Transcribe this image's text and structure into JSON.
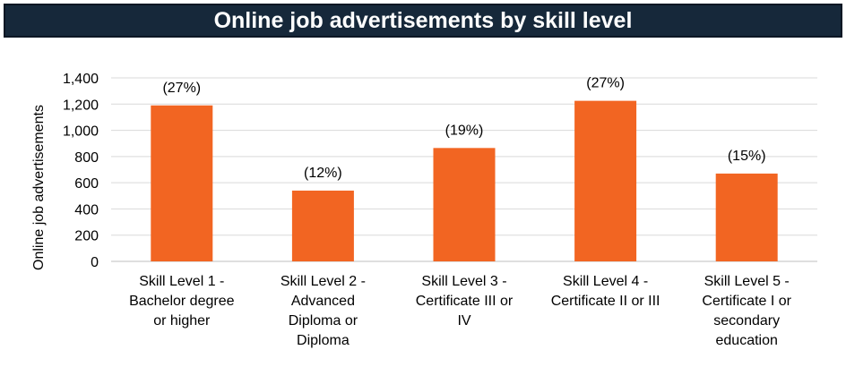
{
  "chart_data": {
    "type": "bar",
    "title": "Online job advertisements by skill level",
    "xlabel": "",
    "ylabel": "Online job advertisements",
    "ylim": [
      0,
      1400
    ],
    "yticks": [
      0,
      200,
      400,
      600,
      800,
      1000,
      1200,
      1400
    ],
    "ytick_labels": [
      "0",
      "200",
      "400",
      "600",
      "800",
      "1,000",
      "1,200",
      "1,400"
    ],
    "grid": true,
    "legend": "none",
    "categories": [
      [
        "Skill Level 1 -",
        "Bachelor degree",
        "or higher"
      ],
      [
        "Skill Level 2 -",
        "Advanced",
        "Diploma or",
        "Diploma"
      ],
      [
        "Skill Level 3 -",
        "Certificate III or",
        "IV"
      ],
      [
        "Skill Level 4 -",
        "Certificate II or III"
      ],
      [
        "Skill Level 5 -",
        "Certificate I or",
        "secondary",
        "education"
      ]
    ],
    "values": [
      1190,
      540,
      865,
      1225,
      670
    ],
    "data_labels": [
      "(27%)",
      "(12%)",
      "(19%)",
      "(27%)",
      "(15%)"
    ],
    "colors": {
      "bar": "#f26522",
      "grid": "#d9d9d9",
      "title_bg": "#16283a"
    }
  }
}
